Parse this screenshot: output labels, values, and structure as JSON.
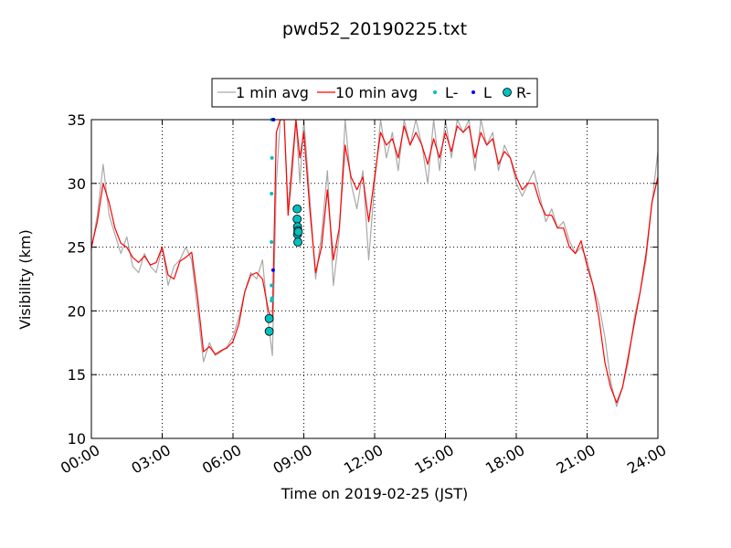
{
  "chart_data": {
    "type": "line",
    "title": "pwd52_20190225.txt",
    "xlabel": "Time on 2019-02-25 (JST)",
    "ylabel": "Visibility (km)",
    "xlim": [
      "2019-02-25 00:00",
      "2019-02-26 00:00"
    ],
    "ylim": [
      10,
      35
    ],
    "grid": true,
    "legend_position": "top-center",
    "x_tick_labels": [
      "00:00",
      "03:00",
      "06:00",
      "09:00",
      "12:00",
      "15:00",
      "18:00",
      "21:00",
      "24:00"
    ],
    "y_tick_labels": [
      "10",
      "15",
      "20",
      "25",
      "30",
      "35"
    ],
    "series": [
      {
        "name": "1 min avg",
        "type": "line",
        "color": "#a9a9a9",
        "x": [
          "00:00",
          "00:15",
          "00:30",
          "00:45",
          "01:00",
          "01:15",
          "01:30",
          "01:45",
          "02:00",
          "02:15",
          "02:30",
          "02:45",
          "03:00",
          "03:15",
          "03:30",
          "03:45",
          "04:00",
          "04:15",
          "04:30",
          "04:45",
          "05:00",
          "05:15",
          "05:30",
          "05:45",
          "06:00",
          "06:15",
          "06:30",
          "06:45",
          "07:00",
          "07:15",
          "07:30",
          "07:40",
          "07:50",
          "08:00",
          "08:10",
          "08:20",
          "08:30",
          "08:40",
          "08:50",
          "09:00",
          "09:15",
          "09:30",
          "09:45",
          "10:00",
          "10:15",
          "10:30",
          "10:45",
          "11:00",
          "11:15",
          "11:30",
          "11:45",
          "12:00",
          "12:15",
          "12:30",
          "12:45",
          "13:00",
          "13:15",
          "13:30",
          "13:45",
          "14:00",
          "14:15",
          "14:30",
          "14:45",
          "15:00",
          "15:15",
          "15:30",
          "15:45",
          "16:00",
          "16:15",
          "16:30",
          "16:45",
          "17:00",
          "17:15",
          "17:30",
          "17:45",
          "18:00",
          "18:15",
          "18:30",
          "18:45",
          "19:00",
          "19:15",
          "19:30",
          "19:45",
          "20:00",
          "20:15",
          "20:30",
          "20:45",
          "21:00",
          "21:15",
          "21:30",
          "21:45",
          "22:00",
          "22:15",
          "22:30",
          "22:45",
          "23:00",
          "23:15",
          "23:30",
          "23:45",
          "24:00"
        ],
        "y": [
          24.8,
          27.5,
          31.5,
          27.5,
          26.0,
          24.5,
          25.8,
          23.5,
          23.0,
          24.5,
          23.5,
          23.0,
          25.0,
          22.0,
          23.5,
          24.0,
          25.0,
          24.0,
          20.0,
          16.0,
          17.5,
          16.5,
          16.8,
          17.2,
          18.0,
          19.5,
          21.5,
          23.0,
          22.5,
          24.0,
          19.0,
          16.5,
          30.0,
          35.0,
          35.0,
          28.0,
          32.0,
          35.0,
          30.0,
          35.0,
          29.0,
          22.5,
          26.0,
          31.0,
          22.0,
          26.0,
          35.0,
          30.0,
          28.0,
          31.0,
          24.0,
          30.0,
          35.0,
          32.0,
          34.0,
          31.0,
          35.0,
          33.0,
          35.0,
          33.0,
          30.0,
          35.0,
          31.0,
          35.0,
          32.0,
          35.0,
          34.0,
          35.0,
          31.0,
          35.0,
          33.0,
          34.0,
          31.0,
          33.0,
          32.0,
          30.0,
          29.0,
          30.0,
          31.0,
          29.0,
          27.0,
          28.0,
          26.5,
          27.0,
          25.5,
          24.5,
          25.0,
          24.0,
          22.0,
          20.5,
          18.0,
          14.5,
          12.5,
          14.0,
          16.0,
          19.5,
          21.5,
          24.0,
          28.5,
          32.5
        ]
      },
      {
        "name": "10 min avg",
        "type": "line",
        "color": "#ff0000",
        "x": [
          "00:00",
          "00:15",
          "00:30",
          "00:45",
          "01:00",
          "01:15",
          "01:30",
          "01:45",
          "02:00",
          "02:15",
          "02:30",
          "02:45",
          "03:00",
          "03:15",
          "03:30",
          "03:45",
          "04:00",
          "04:15",
          "04:30",
          "04:45",
          "05:00",
          "05:15",
          "05:30",
          "05:45",
          "06:00",
          "06:15",
          "06:30",
          "06:45",
          "07:00",
          "07:15",
          "07:30",
          "07:40",
          "07:50",
          "08:00",
          "08:10",
          "08:20",
          "08:30",
          "08:40",
          "08:50",
          "09:00",
          "09:15",
          "09:30",
          "09:45",
          "10:00",
          "10:15",
          "10:30",
          "10:45",
          "11:00",
          "11:15",
          "11:30",
          "11:45",
          "12:00",
          "12:15",
          "12:30",
          "12:45",
          "13:00",
          "13:15",
          "13:30",
          "13:45",
          "14:00",
          "14:15",
          "14:30",
          "14:45",
          "15:00",
          "15:15",
          "15:30",
          "15:45",
          "16:00",
          "16:15",
          "16:30",
          "16:45",
          "17:00",
          "17:15",
          "17:30",
          "17:45",
          "18:00",
          "18:15",
          "18:30",
          "18:45",
          "19:00",
          "19:15",
          "19:30",
          "19:45",
          "20:00",
          "20:15",
          "20:30",
          "20:45",
          "21:00",
          "21:15",
          "21:30",
          "21:45",
          "22:00",
          "22:15",
          "22:30",
          "22:45",
          "23:00",
          "23:15",
          "23:30",
          "23:45",
          "24:00"
        ],
        "y": [
          25.0,
          27.0,
          30.0,
          28.5,
          26.5,
          25.3,
          25.0,
          24.2,
          23.8,
          24.3,
          23.6,
          23.8,
          25.0,
          22.8,
          22.5,
          23.9,
          24.2,
          24.6,
          21.0,
          16.8,
          17.2,
          16.6,
          16.9,
          17.1,
          17.6,
          19.0,
          21.5,
          22.8,
          23.0,
          22.5,
          20.0,
          19.2,
          34.0,
          35.0,
          35.0,
          27.5,
          31.0,
          35.0,
          32.0,
          34.0,
          28.0,
          23.0,
          25.0,
          29.5,
          24.0,
          26.5,
          33.0,
          30.5,
          29.5,
          30.5,
          27.0,
          30.5,
          34.0,
          33.0,
          33.5,
          32.0,
          34.5,
          33.0,
          34.0,
          33.0,
          31.5,
          33.5,
          32.0,
          34.0,
          32.5,
          34.5,
          34.0,
          34.5,
          32.0,
          34.0,
          33.0,
          33.5,
          31.5,
          32.5,
          32.0,
          30.5,
          29.5,
          30.0,
          30.0,
          28.5,
          27.5,
          27.5,
          26.5,
          26.5,
          25.0,
          24.5,
          25.5,
          23.5,
          22.0,
          19.5,
          16.0,
          14.0,
          12.8,
          14.0,
          16.5,
          19.0,
          21.5,
          24.5,
          28.5,
          30.5
        ]
      },
      {
        "name": "L-",
        "type": "scatter",
        "color": "#00bfbf",
        "x": [
          "07:38",
          "07:38",
          "07:38",
          "07:38",
          "07:39",
          "07:39",
          "07:39"
        ],
        "y": [
          20.8,
          22.0,
          25.4,
          29.2,
          32.0,
          35.0,
          21.0
        ]
      },
      {
        "name": "L",
        "type": "scatter",
        "color": "#0000ff",
        "x": [
          "07:42",
          "07:43"
        ],
        "y": [
          23.2,
          35.0
        ]
      },
      {
        "name": "R-",
        "type": "scatter",
        "color": "#00bfbf",
        "x": [
          "07:32",
          "07:32",
          "08:43",
          "08:43",
          "08:44",
          "08:44",
          "08:45",
          "08:45",
          "08:46"
        ],
        "y": [
          18.4,
          19.4,
          28.0,
          27.2,
          26.6,
          26.0,
          25.4,
          26.3,
          26.2
        ]
      }
    ]
  }
}
